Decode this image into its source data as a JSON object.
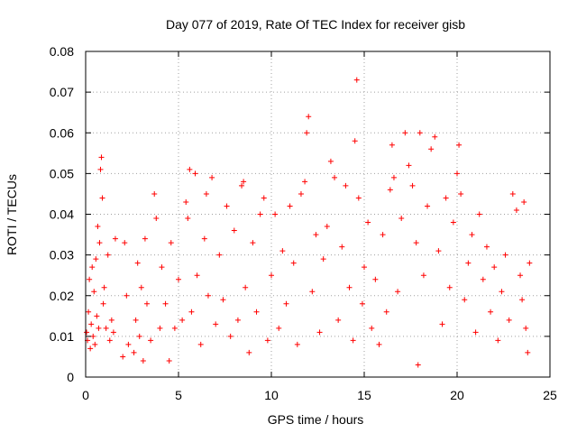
{
  "chart_data": {
    "type": "scatter",
    "title": "Day 077 of 2019, Rate Of TEC Index for receiver gisb",
    "xlabel": "GPS time / hours",
    "ylabel": "ROTI / TECUs",
    "xlim": [
      0,
      25
    ],
    "ylim": [
      0,
      0.08
    ],
    "xticks": [
      0,
      5,
      10,
      15,
      20,
      25
    ],
    "xtick_labels": [
      "0",
      "5",
      "10",
      "15",
      "20",
      "25"
    ],
    "yticks": [
      0,
      0.01,
      0.02,
      0.03,
      0.04,
      0.05,
      0.06,
      0.07,
      0.08
    ],
    "ytick_labels": [
      "0",
      "0.01",
      "0.02",
      "0.03",
      "0.04",
      "0.05",
      "0.06",
      "0.07",
      "0.08"
    ],
    "grid": true,
    "marker": "+",
    "color": "#ff0000",
    "series": [
      {
        "name": "ROTI",
        "points": [
          [
            0.05,
            0.011
          ],
          [
            0.1,
            0.009
          ],
          [
            0.15,
            0.016
          ],
          [
            0.2,
            0.024
          ],
          [
            0.25,
            0.007
          ],
          [
            0.3,
            0.013
          ],
          [
            0.35,
            0.027
          ],
          [
            0.4,
            0.01
          ],
          [
            0.45,
            0.021
          ],
          [
            0.5,
            0.008
          ],
          [
            0.55,
            0.029
          ],
          [
            0.6,
            0.015
          ],
          [
            0.65,
            0.037
          ],
          [
            0.7,
            0.012
          ],
          [
            0.75,
            0.033
          ],
          [
            0.8,
            0.051
          ],
          [
            0.85,
            0.054
          ],
          [
            0.9,
            0.044
          ],
          [
            0.95,
            0.018
          ],
          [
            1.0,
            0.022
          ],
          [
            1.1,
            0.012
          ],
          [
            1.2,
            0.03
          ],
          [
            1.3,
            0.009
          ],
          [
            1.4,
            0.014
          ],
          [
            1.5,
            0.011
          ],
          [
            1.6,
            0.034
          ],
          [
            2.0,
            0.005
          ],
          [
            2.1,
            0.033
          ],
          [
            2.2,
            0.02
          ],
          [
            2.3,
            0.008
          ],
          [
            2.6,
            0.006
          ],
          [
            2.7,
            0.014
          ],
          [
            2.8,
            0.028
          ],
          [
            2.9,
            0.01
          ],
          [
            3.0,
            0.022
          ],
          [
            3.1,
            0.004
          ],
          [
            3.2,
            0.034
          ],
          [
            3.3,
            0.018
          ],
          [
            3.5,
            0.009
          ],
          [
            3.7,
            0.045
          ],
          [
            3.8,
            0.039
          ],
          [
            4.0,
            0.012
          ],
          [
            4.1,
            0.027
          ],
          [
            4.3,
            0.018
          ],
          [
            4.5,
            0.004
          ],
          [
            4.6,
            0.033
          ],
          [
            4.8,
            0.012
          ],
          [
            5.0,
            0.024
          ],
          [
            5.2,
            0.014
          ],
          [
            5.4,
            0.043
          ],
          [
            5.5,
            0.039
          ],
          [
            5.6,
            0.051
          ],
          [
            5.7,
            0.016
          ],
          [
            5.9,
            0.05
          ],
          [
            6.0,
            0.025
          ],
          [
            6.2,
            0.008
          ],
          [
            6.4,
            0.034
          ],
          [
            6.5,
            0.045
          ],
          [
            6.6,
            0.02
          ],
          [
            6.8,
            0.049
          ],
          [
            7.0,
            0.013
          ],
          [
            7.2,
            0.03
          ],
          [
            7.4,
            0.019
          ],
          [
            7.6,
            0.042
          ],
          [
            7.8,
            0.01
          ],
          [
            8.0,
            0.036
          ],
          [
            8.2,
            0.014
          ],
          [
            8.4,
            0.047
          ],
          [
            8.5,
            0.048
          ],
          [
            8.6,
            0.022
          ],
          [
            8.8,
            0.006
          ],
          [
            9.0,
            0.033
          ],
          [
            9.2,
            0.016
          ],
          [
            9.4,
            0.04
          ],
          [
            9.6,
            0.044
          ],
          [
            9.8,
            0.009
          ],
          [
            10.0,
            0.025
          ],
          [
            10.2,
            0.04
          ],
          [
            10.4,
            0.012
          ],
          [
            10.6,
            0.031
          ],
          [
            10.8,
            0.018
          ],
          [
            11.0,
            0.042
          ],
          [
            11.2,
            0.028
          ],
          [
            11.4,
            0.008
          ],
          [
            11.6,
            0.045
          ],
          [
            11.8,
            0.048
          ],
          [
            11.9,
            0.06
          ],
          [
            12.0,
            0.064
          ],
          [
            12.2,
            0.021
          ],
          [
            12.4,
            0.035
          ],
          [
            12.6,
            0.011
          ],
          [
            12.8,
            0.029
          ],
          [
            13.0,
            0.037
          ],
          [
            13.2,
            0.053
          ],
          [
            13.4,
            0.049
          ],
          [
            13.6,
            0.014
          ],
          [
            13.8,
            0.032
          ],
          [
            14.0,
            0.047
          ],
          [
            14.2,
            0.022
          ],
          [
            14.4,
            0.009
          ],
          [
            14.5,
            0.058
          ],
          [
            14.6,
            0.073
          ],
          [
            14.7,
            0.044
          ],
          [
            14.9,
            0.018
          ],
          [
            15.0,
            0.027
          ],
          [
            15.2,
            0.038
          ],
          [
            15.4,
            0.012
          ],
          [
            15.6,
            0.024
          ],
          [
            15.8,
            0.008
          ],
          [
            16.0,
            0.035
          ],
          [
            16.2,
            0.016
          ],
          [
            16.4,
            0.046
          ],
          [
            16.5,
            0.057
          ],
          [
            16.6,
            0.049
          ],
          [
            16.8,
            0.021
          ],
          [
            17.0,
            0.039
          ],
          [
            17.2,
            0.06
          ],
          [
            17.4,
            0.052
          ],
          [
            17.6,
            0.047
          ],
          [
            17.8,
            0.033
          ],
          [
            17.9,
            0.003
          ],
          [
            18.0,
            0.06
          ],
          [
            18.2,
            0.025
          ],
          [
            18.4,
            0.042
          ],
          [
            18.6,
            0.056
          ],
          [
            18.8,
            0.059
          ],
          [
            19.0,
            0.031
          ],
          [
            19.2,
            0.013
          ],
          [
            19.4,
            0.044
          ],
          [
            19.6,
            0.022
          ],
          [
            19.8,
            0.038
          ],
          [
            20.0,
            0.05
          ],
          [
            20.1,
            0.057
          ],
          [
            20.2,
            0.045
          ],
          [
            20.4,
            0.019
          ],
          [
            20.6,
            0.028
          ],
          [
            20.8,
            0.035
          ],
          [
            21.0,
            0.011
          ],
          [
            21.2,
            0.04
          ],
          [
            21.4,
            0.024
          ],
          [
            21.6,
            0.032
          ],
          [
            21.8,
            0.016
          ],
          [
            22.0,
            0.027
          ],
          [
            22.2,
            0.009
          ],
          [
            22.4,
            0.021
          ],
          [
            22.6,
            0.03
          ],
          [
            22.8,
            0.014
          ],
          [
            23.0,
            0.045
          ],
          [
            23.2,
            0.041
          ],
          [
            23.4,
            0.025
          ],
          [
            23.5,
            0.019
          ],
          [
            23.6,
            0.043
          ],
          [
            23.7,
            0.012
          ],
          [
            23.8,
            0.006
          ],
          [
            23.9,
            0.028
          ]
        ]
      }
    ]
  }
}
